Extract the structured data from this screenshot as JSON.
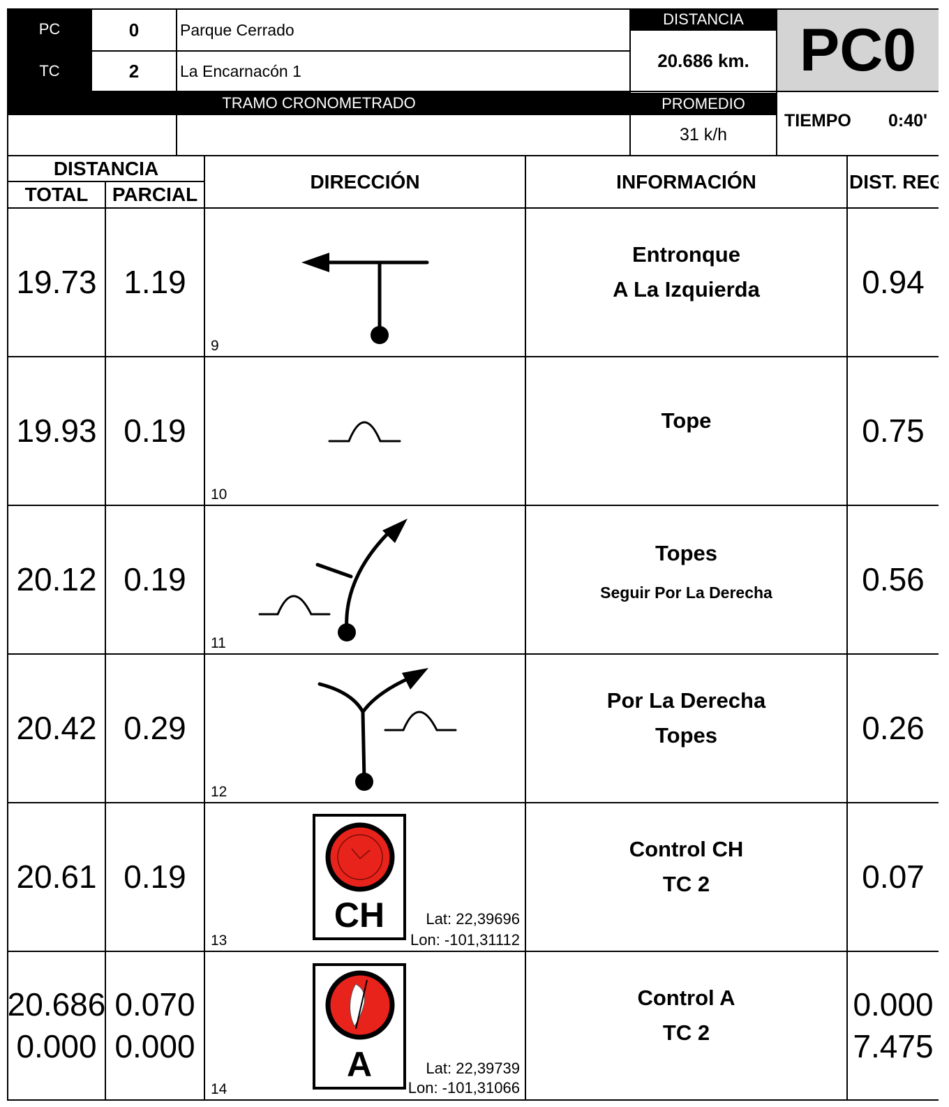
{
  "header": {
    "pc_label": "PC",
    "pc_value": "0",
    "pc_name": "Parque Cerrado",
    "tc_label": "TC",
    "tc_value": "2",
    "tc_name": "La Encarnacón 1",
    "section": "TRAMO CRONOMETRADO",
    "distancia_label": "DISTANCIA",
    "distancia_value": "20.686 km.",
    "promedio_label": "PROMEDIO",
    "promedio_value": "31 k/h",
    "code": "PC0",
    "tiempo_label": "TIEMPO",
    "tiempo_value": "0:40'"
  },
  "columns": {
    "distancia": "DISTANCIA",
    "total": "TOTAL",
    "parcial": "PARCIAL",
    "direccion": "DIRECCIÓN",
    "informacion": "INFORMACIÓN",
    "dist_reg": "DIST. REG"
  },
  "rows": [
    {
      "number": "9",
      "total": [
        "19.73"
      ],
      "parcial": [
        "1.19"
      ],
      "info": [
        "Entronque",
        "A La Izquierda"
      ],
      "dist_reg": [
        "0.94"
      ]
    },
    {
      "number": "10",
      "total": [
        "19.93"
      ],
      "parcial": [
        "0.19"
      ],
      "info": [
        "Tope"
      ],
      "dist_reg": [
        "0.75"
      ]
    },
    {
      "number": "11",
      "total": [
        "20.12"
      ],
      "parcial": [
        "0.19"
      ],
      "info": [
        "Topes"
      ],
      "note": "Seguir Por La Derecha",
      "dist_reg": [
        "0.56"
      ]
    },
    {
      "number": "12",
      "total": [
        "20.42"
      ],
      "parcial": [
        "0.29"
      ],
      "info": [
        "Por La Derecha",
        "Topes"
      ],
      "dist_reg": [
        "0.26"
      ]
    },
    {
      "number": "13",
      "total": [
        "20.61"
      ],
      "parcial": [
        "0.19"
      ],
      "info": [
        "Control CH",
        "TC  2"
      ],
      "dist_reg": [
        "0.07"
      ],
      "badge": "CH",
      "lat": "Lat: 22,39696",
      "lon": "Lon: -101,31112"
    },
    {
      "number": "14",
      "total": [
        "20.686",
        "0.000"
      ],
      "parcial": [
        "0.070",
        "0.000"
      ],
      "info": [
        "Control A",
        "TC  2"
      ],
      "dist_reg": [
        "0.000",
        "7.475"
      ],
      "badge": "A",
      "lat": "Lat: 22,39739",
      "lon": "Lon: -101,31066"
    }
  ]
}
